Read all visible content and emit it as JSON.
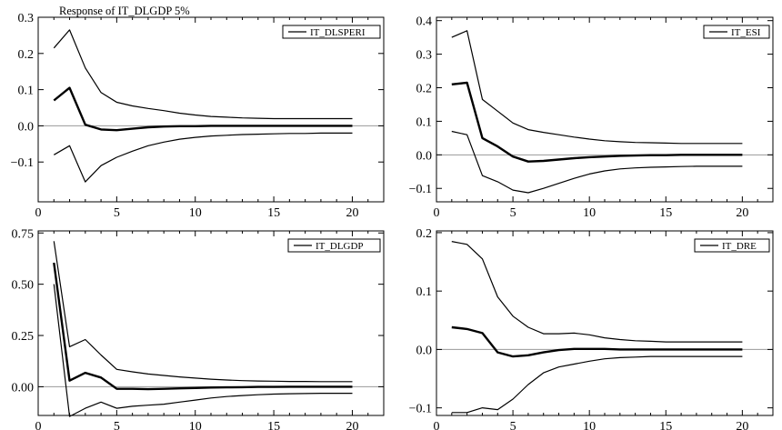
{
  "figure": {
    "title": "Response of IT_DLGDP 5%"
  },
  "chart_data": [
    {
      "type": "line",
      "title": "",
      "legend": "IT_DLSPERI",
      "x": [
        1,
        2,
        3,
        4,
        5,
        6,
        7,
        8,
        9,
        10,
        11,
        12,
        13,
        14,
        15,
        16,
        17,
        18,
        19,
        20
      ],
      "xlim": [
        0,
        22
      ],
      "xticks": [
        0,
        5,
        10,
        15,
        20
      ],
      "ylim": [
        -0.21,
        0.3
      ],
      "yticks": [
        -0.1,
        0.0,
        0.1,
        0.2,
        0.3
      ],
      "ytick_labels": [
        "−0.1",
        "0.0",
        "0.1",
        "0.2",
        "0.3"
      ],
      "series": [
        {
          "role": "response",
          "values": [
            0.07,
            0.105,
            0.003,
            -0.01,
            -0.012,
            -0.008,
            -0.004,
            -0.002,
            -0.001,
            -0.001,
            0,
            0,
            0,
            0,
            0,
            0,
            0,
            0,
            0,
            0
          ]
        },
        {
          "role": "upper",
          "values": [
            0.215,
            0.265,
            0.16,
            0.092,
            0.065,
            0.055,
            0.048,
            0.042,
            0.035,
            0.03,
            0.026,
            0.024,
            0.022,
            0.021,
            0.02,
            0.02,
            0.02,
            0.02,
            0.02,
            0.02
          ]
        },
        {
          "role": "lower",
          "values": [
            -0.08,
            -0.055,
            -0.155,
            -0.11,
            -0.087,
            -0.07,
            -0.055,
            -0.045,
            -0.037,
            -0.032,
            -0.028,
            -0.026,
            -0.024,
            -0.023,
            -0.022,
            -0.021,
            -0.021,
            -0.02,
            -0.02,
            -0.02
          ]
        }
      ]
    },
    {
      "type": "line",
      "title": "",
      "legend": "IT_ESI",
      "x": [
        1,
        2,
        3,
        4,
        5,
        6,
        7,
        8,
        9,
        10,
        11,
        12,
        13,
        14,
        15,
        16,
        17,
        18,
        19,
        20
      ],
      "xlim": [
        0,
        22
      ],
      "xticks": [
        0,
        5,
        10,
        15,
        20
      ],
      "ylim": [
        -0.14,
        0.41
      ],
      "yticks": [
        -0.1,
        0.0,
        0.1,
        0.2,
        0.3,
        0.4
      ],
      "ytick_labels": [
        "−0.1",
        "0.0",
        "0.1",
        "0.2",
        "0.3",
        "0.4"
      ],
      "series": [
        {
          "role": "response",
          "values": [
            0.21,
            0.215,
            0.05,
            0.025,
            -0.005,
            -0.02,
            -0.018,
            -0.014,
            -0.01,
            -0.007,
            -0.005,
            -0.003,
            -0.002,
            -0.001,
            -0.001,
            0,
            0,
            0,
            0,
            0
          ]
        },
        {
          "role": "upper",
          "values": [
            0.35,
            0.37,
            0.165,
            0.13,
            0.095,
            0.075,
            0.067,
            0.06,
            0.053,
            0.047,
            0.042,
            0.039,
            0.037,
            0.036,
            0.035,
            0.034,
            0.034,
            0.034,
            0.034,
            0.034
          ]
        },
        {
          "role": "lower",
          "values": [
            0.07,
            0.06,
            -0.062,
            -0.08,
            -0.105,
            -0.113,
            -0.1,
            -0.085,
            -0.07,
            -0.057,
            -0.048,
            -0.042,
            -0.039,
            -0.037,
            -0.036,
            -0.035,
            -0.034,
            -0.034,
            -0.034,
            -0.034
          ]
        }
      ]
    },
    {
      "type": "line",
      "title": "",
      "legend": "IT_DLGDP",
      "x": [
        1,
        2,
        3,
        4,
        5,
        6,
        7,
        8,
        9,
        10,
        11,
        12,
        13,
        14,
        15,
        16,
        17,
        18,
        19,
        20
      ],
      "xlim": [
        0,
        22
      ],
      "xticks": [
        0,
        5,
        10,
        15,
        20
      ],
      "ylim": [
        -0.14,
        0.76
      ],
      "yticks": [
        0.0,
        0.25,
        0.5,
        0.75
      ],
      "ytick_labels": [
        "0.00",
        "0.25",
        "0.50",
        "0.75"
      ],
      "series": [
        {
          "role": "response",
          "values": [
            0.605,
            0.03,
            0.068,
            0.045,
            -0.01,
            -0.01,
            -0.012,
            -0.01,
            -0.008,
            -0.006,
            -0.004,
            -0.003,
            -0.002,
            -0.001,
            -0.001,
            0,
            0,
            0,
            0,
            0
          ]
        },
        {
          "role": "upper",
          "values": [
            0.71,
            0.195,
            0.23,
            0.155,
            0.085,
            0.073,
            0.062,
            0.055,
            0.048,
            0.042,
            0.037,
            0.033,
            0.03,
            0.028,
            0.027,
            0.026,
            0.026,
            0.025,
            0.025,
            0.025
          ]
        },
        {
          "role": "lower",
          "values": [
            0.5,
            -0.145,
            -0.105,
            -0.075,
            -0.105,
            -0.095,
            -0.09,
            -0.085,
            -0.075,
            -0.065,
            -0.055,
            -0.048,
            -0.043,
            -0.039,
            -0.036,
            -0.034,
            -0.033,
            -0.032,
            -0.032,
            -0.032
          ]
        }
      ]
    },
    {
      "type": "line",
      "title": "",
      "legend": "IT_DRE",
      "x": [
        1,
        2,
        3,
        4,
        5,
        6,
        7,
        8,
        9,
        10,
        11,
        12,
        13,
        14,
        15,
        16,
        17,
        18,
        19,
        20
      ],
      "xlim": [
        0,
        22
      ],
      "xticks": [
        0,
        5,
        10,
        15,
        20
      ],
      "ylim": [
        -0.113,
        0.203
      ],
      "yticks": [
        -0.1,
        0.0,
        0.1,
        0.2
      ],
      "ytick_labels": [
        "−0.1",
        "0.0",
        "0.1",
        "0.2"
      ],
      "series": [
        {
          "role": "response",
          "values": [
            0.038,
            0.035,
            0.028,
            -0.005,
            -0.012,
            -0.01,
            -0.005,
            -0.001,
            0.001,
            0.001,
            0.001,
            0,
            0,
            0,
            0,
            0,
            0,
            0,
            0,
            0
          ]
        },
        {
          "role": "upper",
          "values": [
            0.185,
            0.18,
            0.155,
            0.09,
            0.057,
            0.038,
            0.027,
            0.027,
            0.028,
            0.025,
            0.02,
            0.017,
            0.015,
            0.014,
            0.013,
            0.013,
            0.013,
            0.013,
            0.013,
            0.013
          ]
        },
        {
          "role": "lower",
          "values": [
            -0.108,
            -0.108,
            -0.1,
            -0.103,
            -0.085,
            -0.06,
            -0.04,
            -0.03,
            -0.025,
            -0.02,
            -0.016,
            -0.014,
            -0.013,
            -0.012,
            -0.012,
            -0.012,
            -0.012,
            -0.012,
            -0.012,
            -0.012
          ]
        }
      ]
    }
  ]
}
